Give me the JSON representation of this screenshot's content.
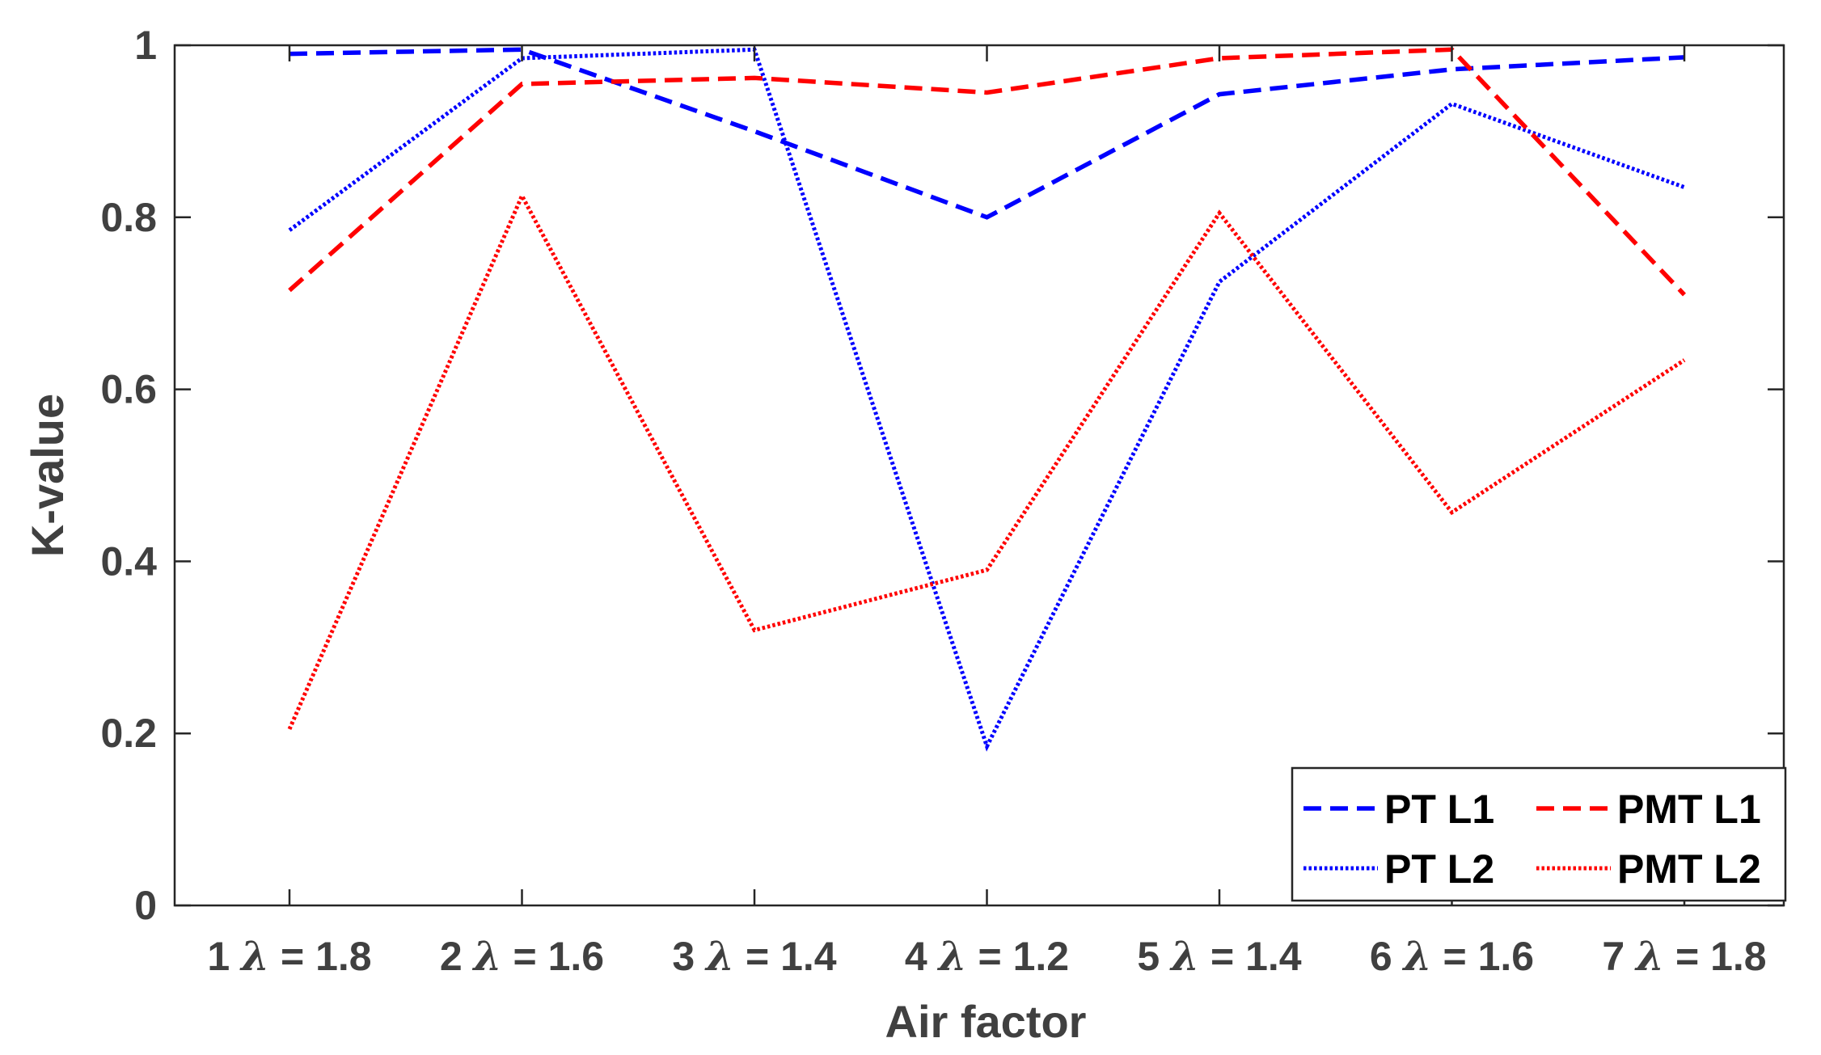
{
  "chart_data": {
    "type": "line",
    "title": "",
    "xlabel": "Air factor",
    "ylabel": "K-value",
    "ylim": [
      0,
      1
    ],
    "yticks": [
      "0",
      "0.2",
      "0.4",
      "0.6",
      "0.8",
      "1"
    ],
    "ytick_values": [
      0,
      0.2,
      0.4,
      0.6,
      0.8,
      1
    ],
    "categories": [
      {
        "index": "1",
        "symbol": "λ",
        "rest": " = 1.8"
      },
      {
        "index": "2",
        "symbol": "λ",
        "rest": " = 1.6"
      },
      {
        "index": "3",
        "symbol": "λ",
        "rest": " = 1.4"
      },
      {
        "index": "4",
        "symbol": "λ",
        "rest": " = 1.2"
      },
      {
        "index": "5",
        "symbol": "λ",
        "rest": " = 1.4"
      },
      {
        "index": "6",
        "symbol": "λ",
        "rest": " = 1.6"
      },
      {
        "index": "7",
        "symbol": "λ",
        "rest": " = 1.8"
      }
    ],
    "grid": false,
    "legend_position": "bottom-right",
    "series": [
      {
        "name": "PT L1",
        "color": "#0000ff",
        "style": "dashed",
        "values": [
          0.99,
          0.995,
          0.9,
          0.8,
          0.943,
          0.972,
          0.986
        ]
      },
      {
        "name": "PT L2",
        "color": "#0000ff",
        "style": "dotted",
        "values": [
          0.785,
          0.985,
          0.995,
          0.185,
          0.725,
          0.932,
          0.835
        ]
      },
      {
        "name": "PMT L1",
        "color": "#ff0000",
        "style": "dashed",
        "values": [
          0.715,
          0.955,
          0.962,
          0.945,
          0.985,
          0.995,
          0.71
        ]
      },
      {
        "name": "PMT L2",
        "color": "#ff0000",
        "style": "dotted",
        "values": [
          0.205,
          0.825,
          0.32,
          0.39,
          0.805,
          0.457,
          0.634
        ]
      }
    ],
    "legend_order": [
      "PT L1",
      "PMT L1",
      "PT L2",
      "PMT L2"
    ]
  }
}
